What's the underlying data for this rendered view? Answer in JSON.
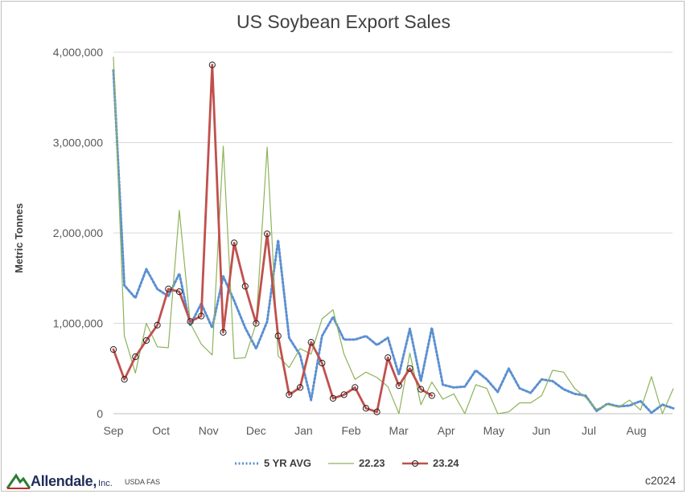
{
  "chart_data": {
    "type": "line",
    "title": "US Soybean Export Sales",
    "ylabel": "Metric Tonnes",
    "xlabel": "",
    "ylim": [
      0,
      4000000
    ],
    "yticks": [
      0,
      1000000,
      2000000,
      3000000,
      4000000
    ],
    "ytick_labels": [
      "0",
      "1,000,000",
      "2,000,000",
      "3,000,000",
      "4,000,000"
    ],
    "months": [
      "Sep",
      "Oct",
      "Nov",
      "Dec",
      "Jan",
      "Feb",
      "Mar",
      "Apr",
      "May",
      "Jun",
      "Jul",
      "Aug"
    ],
    "weeks_total": 52,
    "grid": "horizontal",
    "legend_position": "bottom",
    "series": [
      {
        "name": "5 YR AVG",
        "color": "#5b8fd1",
        "style": "dotted",
        "values": [
          3800000,
          1420000,
          1280000,
          1600000,
          1380000,
          1300000,
          1550000,
          980000,
          1220000,
          950000,
          1520000,
          1250000,
          950000,
          720000,
          1020000,
          1920000,
          840000,
          650000,
          150000,
          860000,
          1070000,
          820000,
          820000,
          860000,
          760000,
          840000,
          430000,
          940000,
          360000,
          950000,
          320000,
          290000,
          300000,
          480000,
          380000,
          240000,
          500000,
          280000,
          230000,
          380000,
          360000,
          270000,
          220000,
          200000,
          30000,
          110000,
          80000,
          90000,
          140000,
          10000,
          100000,
          60000
        ]
      },
      {
        "name": "22.23",
        "color": "#8db35a",
        "style": "solid",
        "values": [
          3950000,
          860000,
          450000,
          1000000,
          740000,
          730000,
          2250000,
          1000000,
          770000,
          650000,
          2960000,
          610000,
          620000,
          1000000,
          2950000,
          640000,
          510000,
          720000,
          660000,
          1050000,
          1150000,
          660000,
          380000,
          460000,
          400000,
          300000,
          0,
          670000,
          100000,
          350000,
          160000,
          220000,
          0,
          320000,
          280000,
          0,
          20000,
          120000,
          120000,
          200000,
          480000,
          460000,
          280000,
          180000,
          50000,
          100000,
          70000,
          150000,
          40000,
          410000,
          0,
          280000
        ]
      },
      {
        "name": "23.24",
        "color": "#c0504d",
        "style": "solid-markers",
        "values": [
          710000,
          380000,
          630000,
          810000,
          980000,
          1380000,
          1350000,
          1020000,
          1080000,
          3860000,
          900000,
          1890000,
          1410000,
          1000000,
          1990000,
          860000,
          210000,
          290000,
          790000,
          560000,
          170000,
          210000,
          290000,
          60000,
          20000,
          620000,
          310000,
          500000,
          270000,
          200000
        ]
      }
    ]
  },
  "footer": {
    "logo_text": "Allendale,",
    "logo_suffix": "Inc.",
    "source": "USDA FAS",
    "copyright": "c2024"
  }
}
